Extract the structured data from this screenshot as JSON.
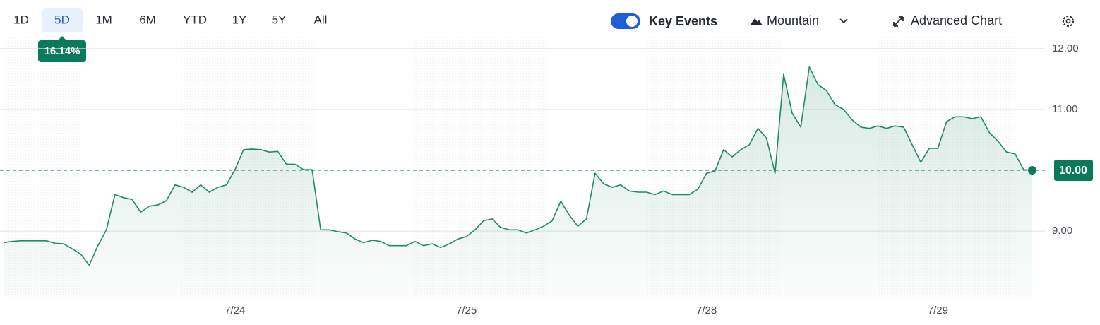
{
  "ui": {
    "ranges": [
      "1D",
      "5D",
      "1M",
      "6M",
      "YTD",
      "1Y",
      "5Y",
      "All"
    ],
    "selected_index": 1,
    "change_badge": "16.14%",
    "key_events": "Key Events",
    "chart_style": "Mountain",
    "advanced": "Advanced Chart"
  },
  "chart_data": {
    "type": "line",
    "color": "#1f8a6a",
    "categories": [
      null,
      null,
      null,
      null,
      null,
      null,
      null,
      null,
      null,
      null,
      null,
      null,
      null,
      null,
      null,
      null,
      null,
      null,
      null,
      null,
      null,
      null,
      null,
      null,
      null,
      null,
      null,
      "7/24",
      null,
      null,
      null,
      null,
      null,
      null,
      null,
      null,
      null,
      null,
      null,
      null,
      null,
      null,
      null,
      null,
      null,
      null,
      null,
      null,
      null,
      null,
      null,
      null,
      null,
      null,
      "7/25",
      null,
      null,
      null,
      null,
      null,
      null,
      null,
      null,
      null,
      null,
      null,
      null,
      null,
      null,
      null,
      null,
      null,
      null,
      null,
      null,
      null,
      null,
      null,
      null,
      null,
      null,
      null,
      "7/28",
      null,
      null,
      null,
      null,
      null,
      null,
      null,
      null,
      null,
      null,
      null,
      null,
      null,
      null,
      null,
      null,
      null,
      null,
      null,
      null,
      null,
      null,
      null,
      null,
      null,
      null,
      "7/29",
      null,
      null,
      null,
      null,
      null,
      null,
      null,
      null,
      null,
      null,
      null
    ],
    "series": [
      {
        "name": null,
        "color": "#1f8a6a",
        "values": [
          8.81,
          8.83,
          8.84,
          8.84,
          8.84,
          8.84,
          8.8,
          8.79,
          8.71,
          8.62,
          8.44,
          8.76,
          9.02,
          9.6,
          9.55,
          9.52,
          9.31,
          9.41,
          9.43,
          9.5,
          9.76,
          9.72,
          9.64,
          9.76,
          9.64,
          9.72,
          9.76,
          10.01,
          10.34,
          10.35,
          10.34,
          10.3,
          10.31,
          10.1,
          10.1,
          10.01,
          10.01,
          9.02,
          9.02,
          8.99,
          8.97,
          8.87,
          8.81,
          8.85,
          8.83,
          8.76,
          8.76,
          8.76,
          8.83,
          8.76,
          8.79,
          8.73,
          8.79,
          8.87,
          8.91,
          9.02,
          9.17,
          9.2,
          9.06,
          9.02,
          9.02,
          8.97,
          9.02,
          9.08,
          9.17,
          9.49,
          9.26,
          9.08,
          9.2,
          9.95,
          9.78,
          9.72,
          9.76,
          9.66,
          9.64,
          9.64,
          9.6,
          9.66,
          9.6,
          9.6,
          9.6,
          9.69,
          9.95,
          9.99,
          10.34,
          10.22,
          10.34,
          10.42,
          10.69,
          10.53,
          9.95,
          11.58,
          10.94,
          10.71,
          11.7,
          11.41,
          11.31,
          11.08,
          11.0,
          10.83,
          10.71,
          10.69,
          10.73,
          10.69,
          10.73,
          10.71,
          10.42,
          10.13,
          10.36,
          10.36,
          10.8,
          10.88,
          10.88,
          10.85,
          10.88,
          10.62,
          10.48,
          10.3,
          10.27,
          10.01,
          10.0
        ]
      }
    ],
    "ylim": [
      7.92,
      12.22
    ],
    "yticks": [
      {
        "value": 9,
        "label": "9.00"
      },
      {
        "value": 11,
        "label": "11.00"
      },
      {
        "value": 12,
        "label": "12.00"
      }
    ],
    "grid": true,
    "reference_value": 10,
    "last_price_label": "10.00"
  }
}
